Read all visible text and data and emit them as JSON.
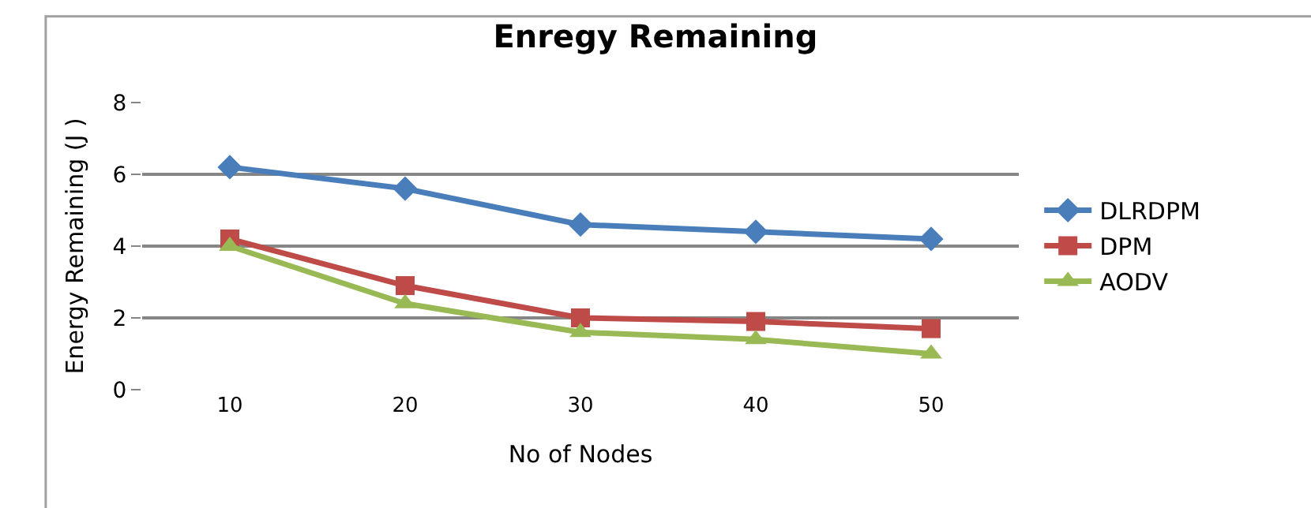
{
  "chart_data": {
    "type": "line",
    "title": "Enregy Remaining",
    "xlabel": "No of Nodes",
    "ylabel": "Energy Remaining (J )",
    "categories": [
      "10",
      "20",
      "30",
      "40",
      "50"
    ],
    "series": [
      {
        "name": "DLRDPM",
        "color": "#4a7ebb",
        "marker": "diamond",
        "values": [
          6.2,
          5.6,
          4.6,
          4.4,
          4.2
        ]
      },
      {
        "name": "DPM",
        "color": "#be4b48",
        "marker": "square",
        "values": [
          4.2,
          2.9,
          2.0,
          1.9,
          1.7
        ]
      },
      {
        "name": "AODV",
        "color": "#98b954",
        "marker": "triangle",
        "values": [
          4.0,
          2.4,
          1.6,
          1.4,
          1.0
        ]
      }
    ],
    "ylim": [
      0,
      8
    ],
    "yticks": [
      0,
      2,
      4,
      6,
      8
    ],
    "grid": "y",
    "legend": "right"
  }
}
